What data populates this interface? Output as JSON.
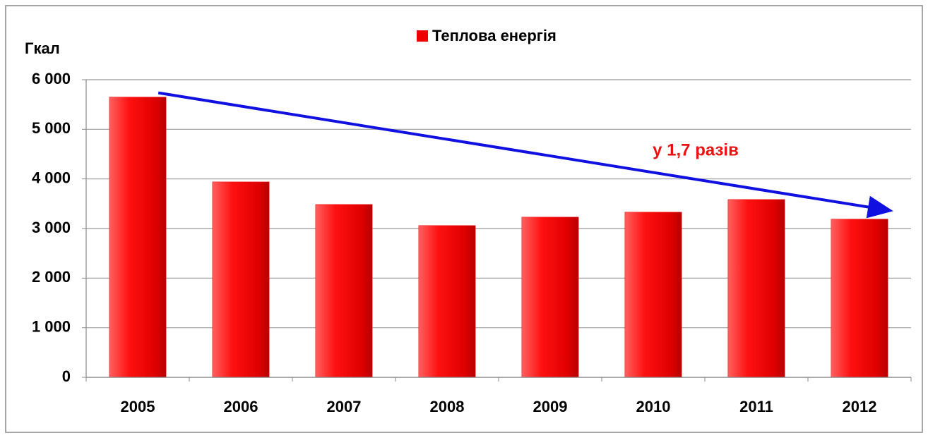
{
  "chart_data": {
    "type": "bar",
    "legend_label": "Теплова енергія",
    "y_axis_label": "Гкал",
    "annotation": "у 1,7 разів",
    "categories": [
      "2005",
      "2006",
      "2007",
      "2008",
      "2009",
      "2010",
      "2011",
      "2012"
    ],
    "values": [
      5650,
      3940,
      3485,
      3060,
      3230,
      3330,
      3585,
      3190
    ],
    "color": "#ee0000",
    "arrow_color": "#1010e0",
    "annotation_color": "#ee1111",
    "ylim": [
      0,
      6000
    ],
    "yticks": [
      0,
      {
        "value": 1000,
        "label": "1 000"
      },
      {
        "value": 2000,
        "label": "2 000"
      },
      {
        "value": 3000,
        "label": "3 000"
      },
      {
        "value": 4000,
        "label": "4 000"
      },
      {
        "value": 5000,
        "label": "5 000"
      },
      {
        "value": 6000,
        "label": "6 000"
      }
    ],
    "grid": true
  }
}
